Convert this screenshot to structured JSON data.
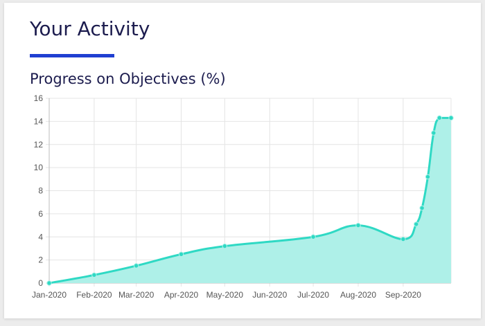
{
  "page": {
    "heading": "Your Activity",
    "subheading": "Progress on Objectives (%)"
  },
  "colors": {
    "heading_text": "#1c1c4e",
    "accent_underline": "#1f3fd1",
    "series_line": "#2fd9c4",
    "series_fill": "#aef0e8"
  },
  "chart_data": {
    "type": "area",
    "title": "Progress on Objectives (%)",
    "xlabel": "",
    "ylabel": "",
    "ylim": [
      0,
      16
    ],
    "y_ticks": [
      "0",
      "2",
      "4",
      "6",
      "8",
      "10",
      "12",
      "14",
      "16"
    ],
    "x_range": [
      "2020-01-01",
      "2020-10-04"
    ],
    "x_tick_dates": [
      "2020-01-01",
      "2020-02-01",
      "2020-03-01",
      "2020-04-01",
      "2020-05-01",
      "2020-06-01",
      "2020-07-01",
      "2020-08-01",
      "2020-09-01"
    ],
    "x_tick_labels": [
      "Jan-2020",
      "Feb-2020",
      "Mar-2020",
      "Apr-2020",
      "May-2020",
      "Jun-2020",
      "Jul-2020",
      "Aug-2020",
      "Sep-2020"
    ],
    "grid": true,
    "legend": "none",
    "series": [
      {
        "x": [
          "2020-01-01",
          "2020-02-01",
          "2020-03-01",
          "2020-04-01",
          "2020-05-01",
          "2020-07-01",
          "2020-08-01",
          "2020-09-01",
          "2020-09-10",
          "2020-09-14",
          "2020-09-18",
          "2020-09-22",
          "2020-09-26",
          "2020-10-04"
        ],
        "values": [
          0,
          0.7,
          1.5,
          2.5,
          3.2,
          4.0,
          5.0,
          3.8,
          5.1,
          6.5,
          9.2,
          13.0,
          14.3,
          14.3
        ]
      }
    ]
  }
}
